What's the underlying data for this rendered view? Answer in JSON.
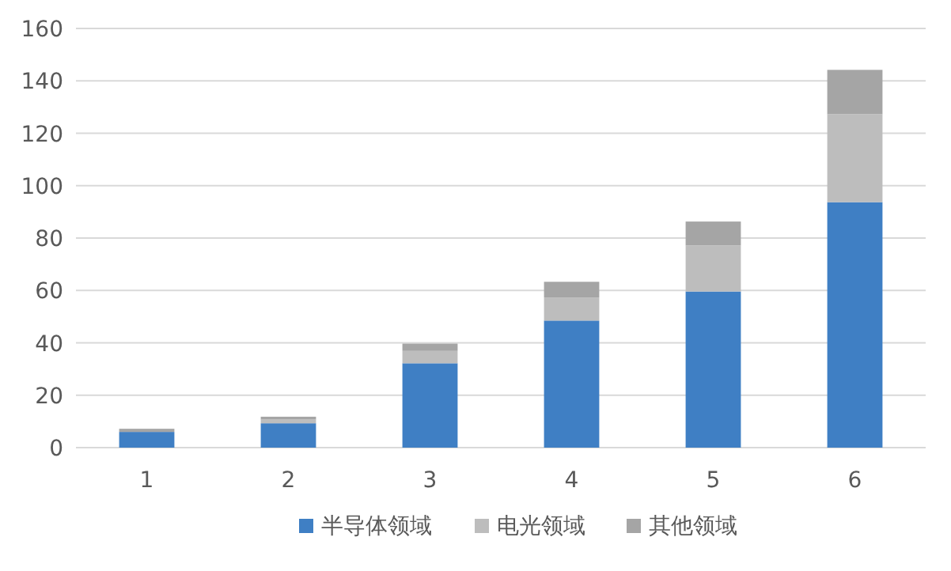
{
  "chart_data": {
    "type": "bar",
    "stacked": true,
    "categories": [
      "1",
      "2",
      "3",
      "4",
      "5",
      "6"
    ],
    "series": [
      {
        "name": "半导体领域",
        "color": "#3f7fc4",
        "values": [
          6,
          9.3,
          32.2,
          48.5,
          59.6,
          93.7
        ]
      },
      {
        "name": "电光领域",
        "color": "#bdbdbd",
        "values": [
          null,
          1.4,
          4.7,
          8.8,
          17.6,
          33.6
        ]
      },
      {
        "name": "其他领域",
        "color": "#a5a5a5",
        "values": [
          1.2,
          1.1,
          2.8,
          6,
          9.1,
          16.9
        ]
      }
    ],
    "ylim": [
      0,
      160
    ],
    "yticks": [
      0,
      20,
      40,
      60,
      80,
      100,
      120,
      140,
      160
    ],
    "grid": "y",
    "legend": "bottom"
  }
}
